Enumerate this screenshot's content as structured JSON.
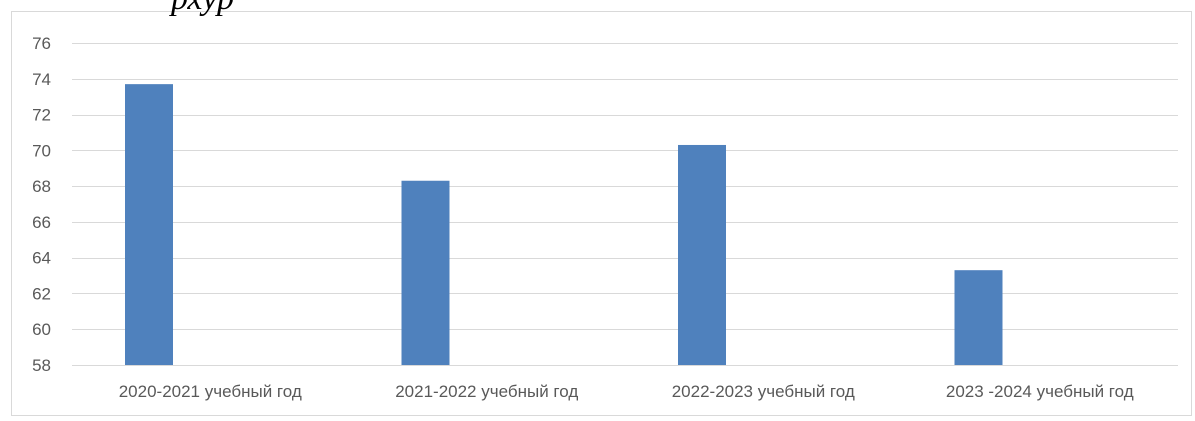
{
  "header_fragment": "рхур",
  "chart_data": {
    "type": "bar",
    "categories": [
      "2020-2021 учебный год",
      "2021-2022 учебный год",
      "2022-2023 учебный год",
      "2023 -2024 учебный год"
    ],
    "values": [
      73.7,
      68.3,
      70.3,
      63.3
    ],
    "title": "",
    "xlabel": "",
    "ylabel": "",
    "ylim": [
      58,
      76
    ],
    "yticks": [
      58,
      60,
      62,
      64,
      66,
      68,
      70,
      72,
      74,
      76
    ],
    "grid": true,
    "legend": "none",
    "colors": {
      "bar": "#4f81bd",
      "grid": "#d9d9d9",
      "frame": "#d9d9d9",
      "axis_text": "#595959"
    }
  }
}
